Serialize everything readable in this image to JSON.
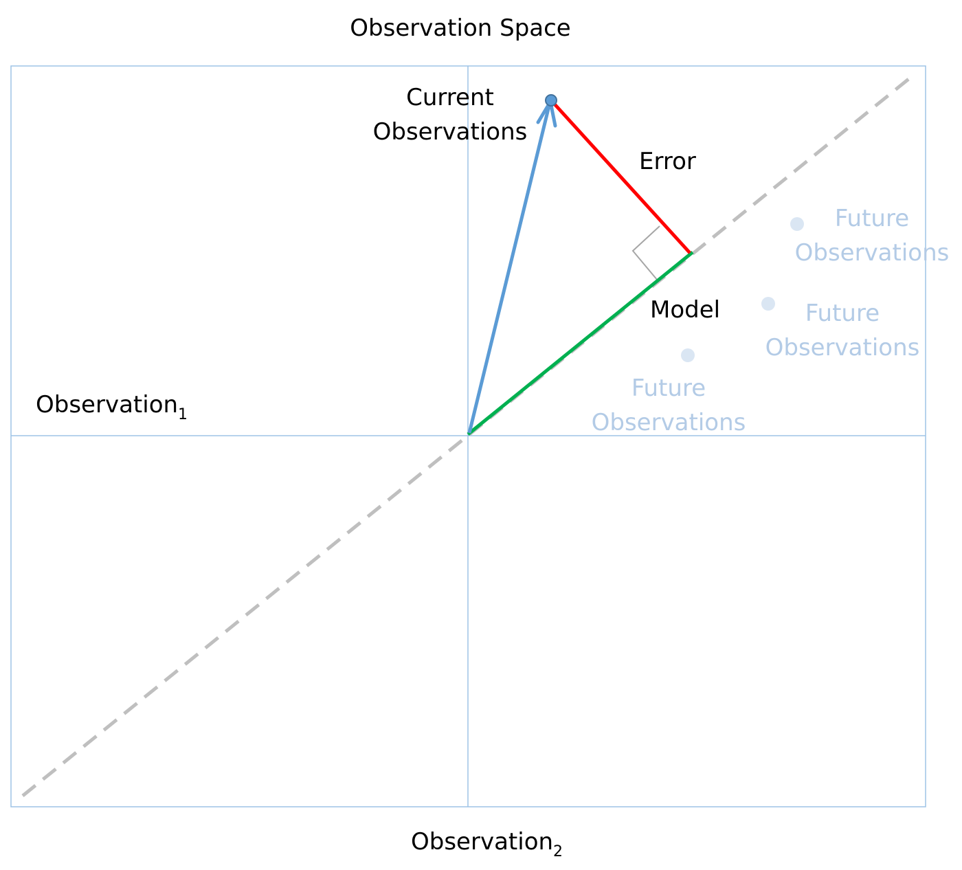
{
  "title": "Observation Space",
  "axes": {
    "observation1": {
      "label": "Observation",
      "subscript": "1"
    },
    "observation2": {
      "label": "Observation",
      "subscript": "2"
    }
  },
  "labels": {
    "current_line1": "Current",
    "current_line2": "Observations",
    "error": "Error",
    "model": "Model",
    "future_line1": "Future",
    "future_line2": "Observations"
  },
  "colors": {
    "frame": "#9dc3e6",
    "current_vector": "#5b9bd5",
    "error_vector": "#ff0000",
    "model_vector": "#00b050",
    "model_line": "#bfbfbf",
    "right_angle_marker": "#a6a6a6",
    "future_points": "#dae6f3",
    "future_text": "#b3cbe6"
  }
}
